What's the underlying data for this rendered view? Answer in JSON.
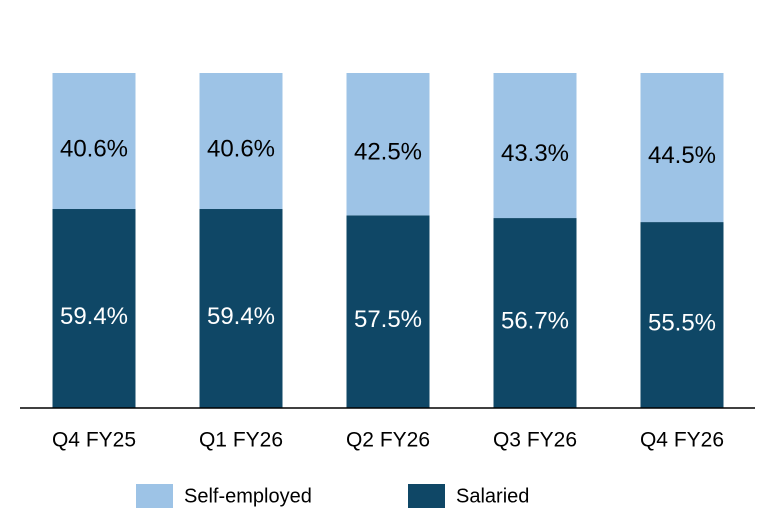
{
  "chart_data": {
    "type": "stacked_bar",
    "categories": [
      "Q4 FY25",
      "Q1 FY26",
      "Q2 FY26",
      "Q3 FY26",
      "Q4 FY26"
    ],
    "series": [
      {
        "name": "Self-employed",
        "color": "#9dc3e6",
        "values": [
          40.6,
          40.6,
          42.5,
          43.3,
          44.5
        ],
        "value_labels": [
          "40.6%",
          "40.6%",
          "42.5%",
          "43.3%",
          "44.5%"
        ]
      },
      {
        "name": "Salaried",
        "color": "#0f4766",
        "values": [
          59.4,
          59.4,
          57.5,
          56.7,
          55.5
        ],
        "value_labels": [
          "59.4%",
          "59.4%",
          "57.5%",
          "56.7%",
          "55.5%"
        ]
      }
    ],
    "ylim": [
      0,
      100
    ]
  }
}
